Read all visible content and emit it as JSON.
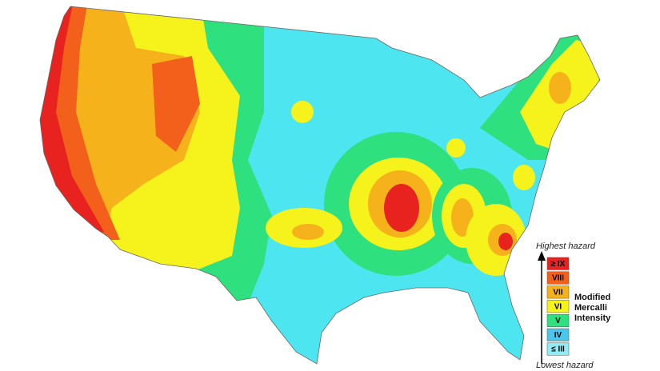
{
  "legend": {
    "top_label": "Highest hazard",
    "bottom_label": "Lowest hazard",
    "title": [
      "Modified",
      "Mercalli",
      "Intensity"
    ],
    "items": [
      {
        "label": "≥ IX",
        "color": "#e8221e"
      },
      {
        "label": "VIII",
        "color": "#f2601c"
      },
      {
        "label": "VII",
        "color": "#f5b21a"
      },
      {
        "label": "VI",
        "color": "#f6f21c"
      },
      {
        "label": "V",
        "color": "#2fe07e"
      },
      {
        "label": "IV",
        "color": "#4ac6ea"
      },
      {
        "label": "≤ III",
        "color": "#8fecf4"
      }
    ]
  }
}
